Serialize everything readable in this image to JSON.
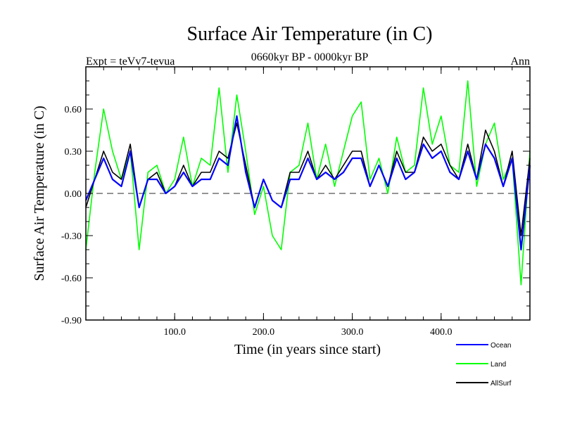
{
  "chart_data": {
    "type": "line",
    "title": "Surface Air Temperature (in C)",
    "subtitle": "0660kyr BP - 0000kyr BP",
    "top_left_label": "Expt = teVv7-tevua",
    "top_right_label": "Ann",
    "xlabel": "Time (in years since start)",
    "ylabel": "Surface Air Temperature (in C)",
    "xlim": [
      0,
      500
    ],
    "ylim": [
      -0.9,
      0.9
    ],
    "x_ticks": [
      {
        "value": 100,
        "label": "100.0"
      },
      {
        "value": 200,
        "label": "200.0"
      },
      {
        "value": 300,
        "label": "300.0"
      },
      {
        "value": 400,
        "label": "400.0"
      }
    ],
    "y_ticks": [
      {
        "value": -0.9,
        "label": "-0.90"
      },
      {
        "value": -0.6,
        "label": "-0.60"
      },
      {
        "value": -0.3,
        "label": "-0.30"
      },
      {
        "value": 0.0,
        "label": "0.00"
      },
      {
        "value": 0.3,
        "label": "0.30"
      },
      {
        "value": 0.6,
        "label": "0.60"
      }
    ],
    "zero_line": true,
    "grid": false,
    "legend_position": "bottom-right",
    "series": [
      {
        "name": "Land",
        "color": "#00ff00",
        "x": [
          0,
          10,
          20,
          30,
          40,
          50,
          60,
          70,
          80,
          90,
          100,
          110,
          120,
          130,
          140,
          150,
          160,
          170,
          180,
          190,
          200,
          210,
          220,
          230,
          240,
          250,
          260,
          270,
          280,
          290,
          300,
          310,
          320,
          330,
          340,
          350,
          360,
          370,
          380,
          390,
          400,
          410,
          420,
          430,
          440,
          450,
          460,
          470,
          480,
          490,
          500
        ],
        "values": [
          -0.4,
          0.15,
          0.6,
          0.3,
          0.1,
          0.3,
          -0.4,
          0.15,
          0.2,
          0.0,
          0.1,
          0.4,
          0.05,
          0.25,
          0.2,
          0.75,
          0.15,
          0.7,
          0.3,
          -0.15,
          0.05,
          -0.3,
          -0.4,
          0.15,
          0.2,
          0.5,
          0.1,
          0.35,
          0.05,
          0.3,
          0.55,
          0.65,
          0.1,
          0.25,
          0.0,
          0.4,
          0.15,
          0.2,
          0.75,
          0.35,
          0.55,
          0.2,
          0.15,
          0.8,
          0.05,
          0.35,
          0.5,
          0.1,
          0.25,
          -0.65,
          0.3
        ]
      },
      {
        "name": "AllSurf",
        "color": "#000000",
        "x": [
          0,
          10,
          20,
          30,
          40,
          50,
          60,
          70,
          80,
          90,
          100,
          110,
          120,
          130,
          140,
          150,
          160,
          170,
          180,
          190,
          200,
          210,
          220,
          230,
          240,
          250,
          260,
          270,
          280,
          290,
          300,
          310,
          320,
          330,
          340,
          350,
          360,
          370,
          380,
          390,
          400,
          410,
          420,
          430,
          440,
          450,
          460,
          470,
          480,
          490,
          500
        ],
        "values": [
          -0.1,
          0.1,
          0.3,
          0.15,
          0.1,
          0.35,
          -0.1,
          0.1,
          0.15,
          0.0,
          0.05,
          0.2,
          0.05,
          0.15,
          0.15,
          0.3,
          0.25,
          0.5,
          0.2,
          -0.1,
          0.1,
          -0.05,
          -0.1,
          0.15,
          0.15,
          0.3,
          0.1,
          0.2,
          0.1,
          0.2,
          0.3,
          0.3,
          0.05,
          0.2,
          0.05,
          0.3,
          0.15,
          0.15,
          0.4,
          0.3,
          0.35,
          0.2,
          0.1,
          0.35,
          0.1,
          0.45,
          0.3,
          0.05,
          0.3,
          -0.3,
          0.25
        ]
      },
      {
        "name": "Ocean",
        "color": "#0000ff",
        "x": [
          0,
          10,
          20,
          30,
          40,
          50,
          60,
          70,
          80,
          90,
          100,
          110,
          120,
          130,
          140,
          150,
          160,
          170,
          180,
          190,
          200,
          210,
          220,
          230,
          240,
          250,
          260,
          270,
          280,
          290,
          300,
          310,
          320,
          330,
          340,
          350,
          360,
          370,
          380,
          390,
          400,
          410,
          420,
          430,
          440,
          450,
          460,
          470,
          480,
          490,
          500
        ],
        "values": [
          -0.05,
          0.1,
          0.25,
          0.1,
          0.05,
          0.3,
          -0.1,
          0.1,
          0.1,
          0.0,
          0.05,
          0.15,
          0.05,
          0.1,
          0.1,
          0.25,
          0.2,
          0.55,
          0.15,
          -0.1,
          0.1,
          -0.05,
          -0.1,
          0.1,
          0.1,
          0.25,
          0.1,
          0.15,
          0.1,
          0.15,
          0.25,
          0.25,
          0.05,
          0.2,
          0.05,
          0.25,
          0.1,
          0.15,
          0.35,
          0.25,
          0.3,
          0.15,
          0.1,
          0.3,
          0.1,
          0.35,
          0.25,
          0.05,
          0.25,
          -0.4,
          0.2
        ]
      }
    ]
  }
}
